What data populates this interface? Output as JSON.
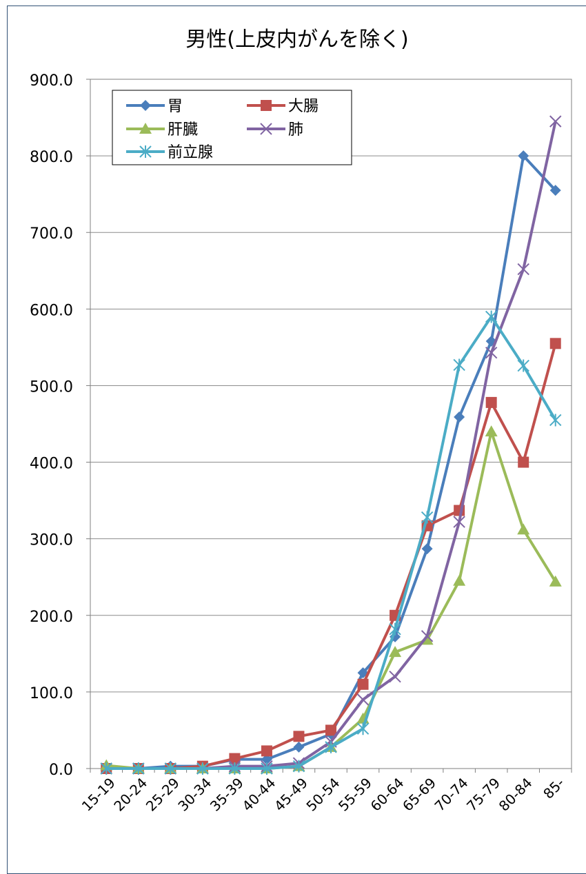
{
  "chart_data": {
    "type": "line",
    "title": "男性(上皮内がんを除く)",
    "xlabel": "",
    "ylabel": "",
    "ylim": [
      0,
      900
    ],
    "y_ticks": [
      "0.0",
      "100.0",
      "200.0",
      "300.0",
      "400.0",
      "500.0",
      "600.0",
      "700.0",
      "800.0",
      "900.0"
    ],
    "y_tick_values": [
      0,
      100,
      200,
      300,
      400,
      500,
      600,
      700,
      800,
      900
    ],
    "grid": true,
    "legend_position": "top-left",
    "categories": [
      "15-19",
      "20-24",
      "25-29",
      "30-34",
      "35-39",
      "40-44",
      "45-49",
      "50-54",
      "55-59",
      "60-64",
      "65-69",
      "70-74",
      "75-79",
      "80-84",
      "85-"
    ],
    "series": [
      {
        "name": "胃",
        "color": "#4a7ebb",
        "marker": "diamond",
        "values": [
          0,
          0,
          3,
          3,
          12,
          12,
          28,
          45,
          125,
          172,
          287,
          459,
          558,
          800,
          755
        ]
      },
      {
        "name": "大腸",
        "color": "#c0504d",
        "marker": "square",
        "values": [
          0,
          0,
          0,
          3,
          13,
          23,
          42,
          50,
          110,
          200,
          317,
          337,
          478,
          400,
          555
        ]
      },
      {
        "name": "肝臓",
        "color": "#9bbb59",
        "marker": "triangle",
        "values": [
          4,
          0,
          0,
          0,
          0,
          0,
          3,
          28,
          65,
          152,
          168,
          245,
          440,
          312,
          244
        ]
      },
      {
        "name": "肺",
        "color": "#8064a2",
        "marker": "x",
        "values": [
          0,
          0,
          0,
          0,
          3,
          3,
          7,
          35,
          90,
          120,
          173,
          322,
          543,
          652,
          845
        ]
      },
      {
        "name": "前立腺",
        "color": "#4bacc6",
        "marker": "asterisk",
        "values": [
          0,
          0,
          0,
          0,
          0,
          0,
          3,
          28,
          52,
          182,
          328,
          527,
          590,
          526,
          455
        ]
      }
    ]
  }
}
